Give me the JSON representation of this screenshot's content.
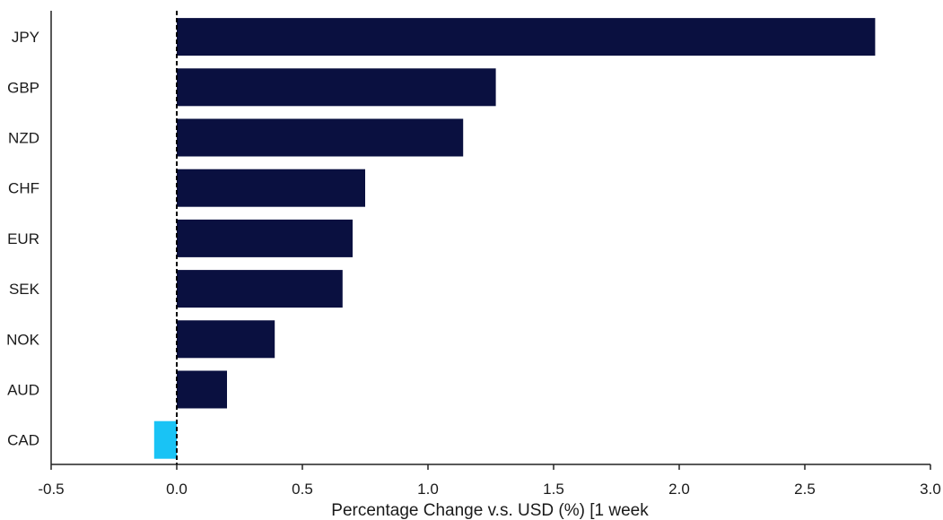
{
  "chart_data": {
    "type": "bar",
    "orientation": "horizontal",
    "categories": [
      "JPY",
      "GBP",
      "NZD",
      "CHF",
      "EUR",
      "SEK",
      "NOK",
      "AUD",
      "CAD"
    ],
    "values": [
      2.78,
      1.27,
      1.14,
      0.75,
      0.7,
      0.66,
      0.39,
      0.2,
      -0.09
    ],
    "xlabel": "Percentage Change v.s. USD (%) [1 week",
    "ylabel": "",
    "title": "",
    "xlim": [
      -0.5,
      3.0
    ],
    "xticks": [
      -0.5,
      0.0,
      0.5,
      1.0,
      1.5,
      2.0,
      2.5,
      3.0
    ],
    "xtick_labels": [
      "-0.5",
      "0.0",
      "0.5",
      "1.0",
      "1.5",
      "2.0",
      "2.5",
      "3.0"
    ],
    "grid": false,
    "legend": "none",
    "colors": {
      "positive": "#0a1040",
      "negative": "#19c3f5",
      "zero_line": "#000000",
      "axis": "#222222"
    }
  }
}
